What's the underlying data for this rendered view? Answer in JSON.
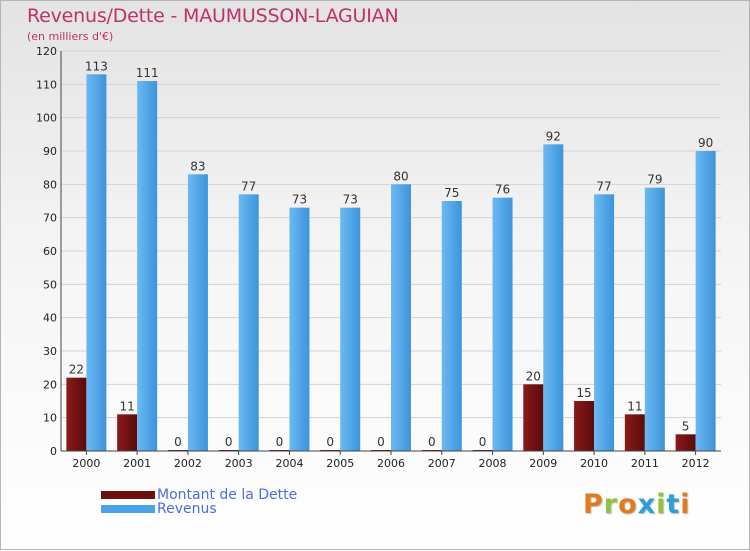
{
  "title": "Revenus/Dette - MAUMUSSON-LAGUIAN",
  "subtitle": "(en milliers d'€)",
  "logo": [
    "P",
    "r",
    "o",
    "x",
    "i",
    "t",
    "i"
  ],
  "logo_colors": [
    "#e07b1f",
    "#8cc63f",
    "#e07b1f",
    "#2a9fd8",
    "#8cc63f",
    "#2a9fd8",
    "#e07b1f"
  ],
  "colors": {
    "dette": "#6b0f0f",
    "revenus": "#4aa3e6",
    "title": "#c0306a",
    "legend_text": "#4a6ee0"
  },
  "legend": [
    {
      "label": "Montant de la Dette",
      "color": "#6b0f0f"
    },
    {
      "label": "Revenus",
      "color": "#4aa3e6"
    }
  ],
  "chart_data": {
    "type": "bar",
    "title": "Revenus/Dette - MAUMUSSON-LAGUIAN",
    "ylabel": "(en milliers d'€)",
    "ylim": [
      0,
      120
    ],
    "yticks": [
      0,
      10,
      20,
      30,
      40,
      50,
      60,
      70,
      80,
      90,
      100,
      110,
      120
    ],
    "grid": true,
    "categories": [
      "2000",
      "2001",
      "2002",
      "2003",
      "2004",
      "2005",
      "2006",
      "2007",
      "2008",
      "2009",
      "2010",
      "2011",
      "2012"
    ],
    "series": [
      {
        "name": "Montant de la Dette",
        "values": [
          22,
          11,
          0,
          0,
          0,
          0,
          0,
          0,
          0,
          20,
          15,
          11,
          5
        ]
      },
      {
        "name": "Revenus",
        "values": [
          113,
          111,
          83,
          77,
          73,
          73,
          80,
          75,
          76,
          92,
          77,
          79,
          90
        ]
      }
    ]
  }
}
